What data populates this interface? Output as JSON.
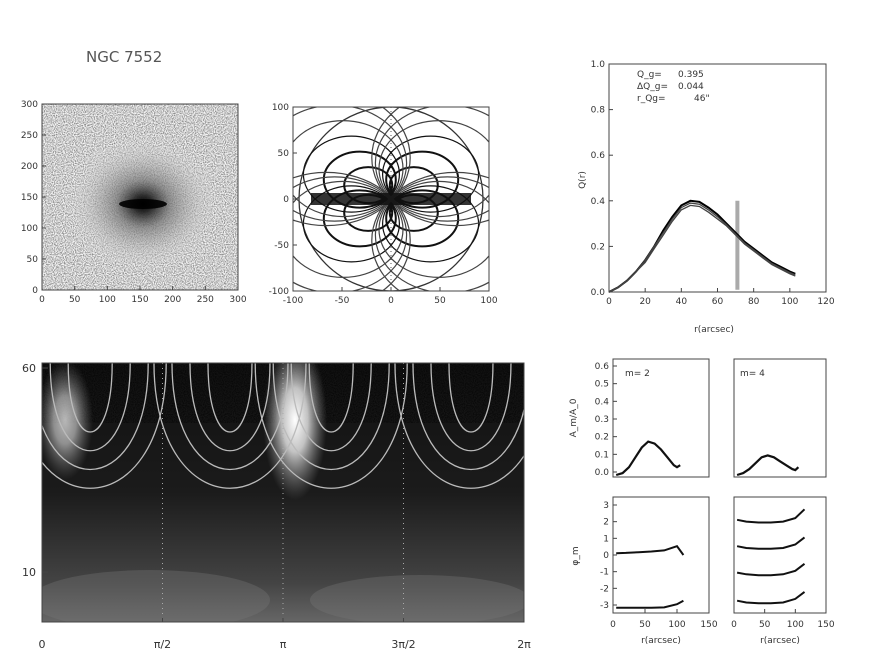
{
  "chart_data": [
    {
      "id": "density-map",
      "type": "heatmap",
      "title": "NGC 7552",
      "x_ticks": [
        "0",
        "50",
        "100",
        "150",
        "200",
        "250",
        "300"
      ],
      "y_ticks": [
        "0",
        "50",
        "100",
        "150",
        "200",
        "250",
        "300"
      ],
      "xlim": [
        0,
        300
      ],
      "ylim": [
        0,
        300
      ]
    },
    {
      "id": "fourier-contours",
      "type": "heatmap",
      "x_ticks": [
        "-100",
        "-50",
        "0",
        "50",
        "100"
      ],
      "y_ticks": [
        "-100",
        "-50",
        "0",
        "50",
        "100"
      ],
      "xlim": [
        -100,
        100
      ],
      "ylim": [
        -100,
        100
      ]
    },
    {
      "id": "q-profile",
      "type": "line",
      "xlabel": "r(arcsec)",
      "ylabel": "Q(r)",
      "x_ticks": [
        "0",
        "20",
        "40",
        "60",
        "80",
        "100",
        "120"
      ],
      "y_ticks": [
        "0.0",
        "0.2",
        "0.4",
        "0.6",
        "0.8",
        "1.0"
      ],
      "xlim": [
        0,
        120
      ],
      "ylim": [
        0,
        1.0
      ],
      "annotations": [
        {
          "label": "Q_g=",
          "value": "0.395"
        },
        {
          "label": "ΔQ_g=",
          "value": "0.044"
        },
        {
          "label": "r_Qg=",
          "value": "46\""
        }
      ],
      "vline_x": 71,
      "x": [
        0,
        5,
        10,
        15,
        20,
        25,
        30,
        35,
        40,
        45,
        50,
        55,
        60,
        65,
        70,
        75,
        80,
        85,
        90,
        95,
        100,
        103
      ],
      "series": [
        {
          "values": [
            0.0,
            0.02,
            0.05,
            0.09,
            0.14,
            0.2,
            0.27,
            0.33,
            0.38,
            0.4,
            0.395,
            0.37,
            0.34,
            0.3,
            0.26,
            0.22,
            0.19,
            0.16,
            0.13,
            0.11,
            0.09,
            0.08
          ]
        },
        {
          "values": [
            0.0,
            0.02,
            0.05,
            0.09,
            0.14,
            0.2,
            0.26,
            0.32,
            0.37,
            0.39,
            0.385,
            0.36,
            0.33,
            0.295,
            0.255,
            0.215,
            0.185,
            0.155,
            0.125,
            0.105,
            0.085,
            0.075
          ]
        },
        {
          "values": [
            0.0,
            0.02,
            0.05,
            0.09,
            0.13,
            0.19,
            0.25,
            0.31,
            0.36,
            0.38,
            0.375,
            0.35,
            0.32,
            0.29,
            0.25,
            0.21,
            0.18,
            0.15,
            0.12,
            0.1,
            0.08,
            0.07
          ]
        }
      ]
    },
    {
      "id": "polar-map",
      "type": "heatmap",
      "x_ticks": [
        "0",
        "π/2",
        "π",
        "3π/2",
        "2π"
      ],
      "y_ticks": [
        "10",
        "60"
      ],
      "y_scale": "log"
    },
    {
      "id": "amp-m2",
      "type": "line",
      "label": "m= 2",
      "ylabel": "A_m/A_0",
      "y_ticks": [
        "0.0",
        "0.1",
        "0.2",
        "0.3",
        "0.4",
        "0.5",
        "0.6"
      ],
      "ylim": [
        0,
        0.6
      ],
      "xlim": [
        0,
        150
      ],
      "x": [
        5,
        15,
        25,
        35,
        45,
        55,
        65,
        75,
        85,
        95,
        100,
        105
      ],
      "values": [
        0.01,
        0.02,
        0.05,
        0.1,
        0.15,
        0.18,
        0.17,
        0.14,
        0.1,
        0.06,
        0.05,
        0.06
      ]
    },
    {
      "id": "amp-m4",
      "type": "line",
      "label": "m= 4",
      "ylim": [
        0,
        0.6
      ],
      "xlim": [
        0,
        150
      ],
      "x": [
        5,
        15,
        25,
        35,
        45,
        55,
        65,
        75,
        85,
        95,
        100,
        105
      ],
      "values": [
        0.01,
        0.02,
        0.04,
        0.07,
        0.1,
        0.11,
        0.1,
        0.08,
        0.06,
        0.04,
        0.035,
        0.05
      ]
    },
    {
      "id": "phase-m2",
      "type": "line",
      "ylabel": "φ_m",
      "xlabel": "r(arcsec)",
      "x_ticks": [
        "0",
        "50",
        "100",
        "150"
      ],
      "y_ticks": [
        "3",
        "2",
        "1",
        "0",
        "-1",
        "-2",
        "-3"
      ],
      "ylim": [
        -3.3,
        3.3
      ],
      "xlim": [
        0,
        150
      ],
      "x": [
        5,
        20,
        40,
        60,
        80,
        100,
        110
      ],
      "series": [
        {
          "values": [
            0.1,
            0.12,
            0.16,
            0.2,
            0.26,
            0.5,
            0.0
          ]
        },
        {
          "values": [
            -3.0,
            -3.0,
            -3.0,
            -3.0,
            -2.98,
            -2.8,
            -2.6
          ]
        }
      ]
    },
    {
      "id": "phase-m4",
      "type": "line",
      "xlabel": "r(arcsec)",
      "x_ticks": [
        "0",
        "50",
        "100",
        "150"
      ],
      "ylim": [
        -3.3,
        3.3
      ],
      "xlim": [
        0,
        150
      ],
      "x": [
        5,
        20,
        40,
        60,
        80,
        100,
        115
      ],
      "series": [
        {
          "values": [
            2.0,
            1.9,
            1.85,
            1.85,
            1.9,
            2.1,
            2.6
          ]
        },
        {
          "values": [
            0.5,
            0.4,
            0.35,
            0.35,
            0.4,
            0.6,
            1.0
          ]
        },
        {
          "values": [
            -1.0,
            -1.1,
            -1.15,
            -1.15,
            -1.1,
            -0.9,
            -0.5
          ]
        },
        {
          "values": [
            -2.6,
            -2.7,
            -2.75,
            -2.75,
            -2.7,
            -2.5,
            -2.1
          ]
        }
      ]
    }
  ]
}
